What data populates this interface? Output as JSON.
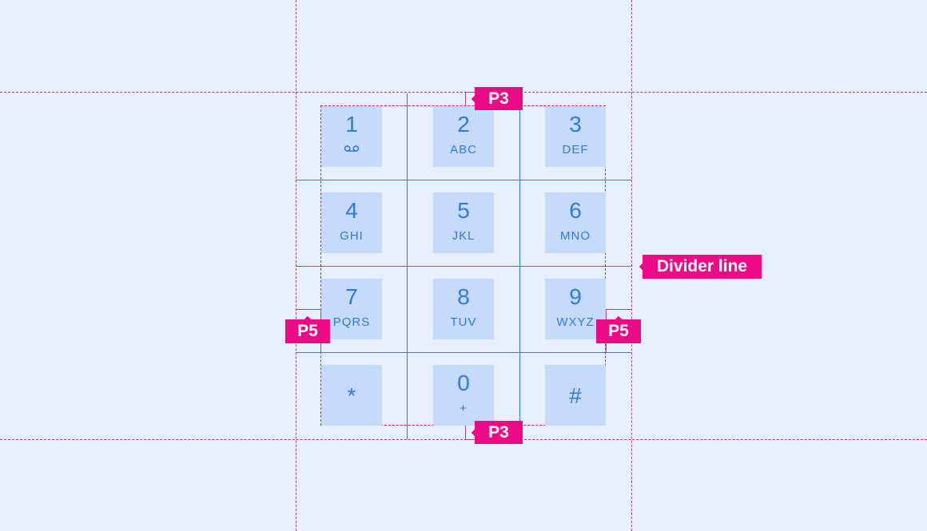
{
  "keys": [
    {
      "num": "1",
      "sub": "",
      "icon": "voicemail-icon"
    },
    {
      "num": "2",
      "sub": "ABC"
    },
    {
      "num": "3",
      "sub": "DEF"
    },
    {
      "num": "4",
      "sub": "GHI"
    },
    {
      "num": "5",
      "sub": "JKL"
    },
    {
      "num": "6",
      "sub": "MNO"
    },
    {
      "num": "7",
      "sub": "PQRS"
    },
    {
      "num": "8",
      "sub": "TUV"
    },
    {
      "num": "9",
      "sub": "WXYZ"
    },
    {
      "num": "*",
      "sub": "",
      "single": true
    },
    {
      "num": "0",
      "sub": "+"
    },
    {
      "num": "#",
      "sub": "",
      "single": true
    }
  ],
  "annotations": {
    "p3_top": "P3",
    "p3_bottom": "P3",
    "p5_left": "P5",
    "p5_right": "P5",
    "divider": "Divider line"
  },
  "colors": {
    "background": "#e8effc",
    "key_fill": "#c6dafb",
    "key_text": "#2f7be0",
    "divider": "#2f7be0",
    "annotation": "#ec0a86"
  }
}
